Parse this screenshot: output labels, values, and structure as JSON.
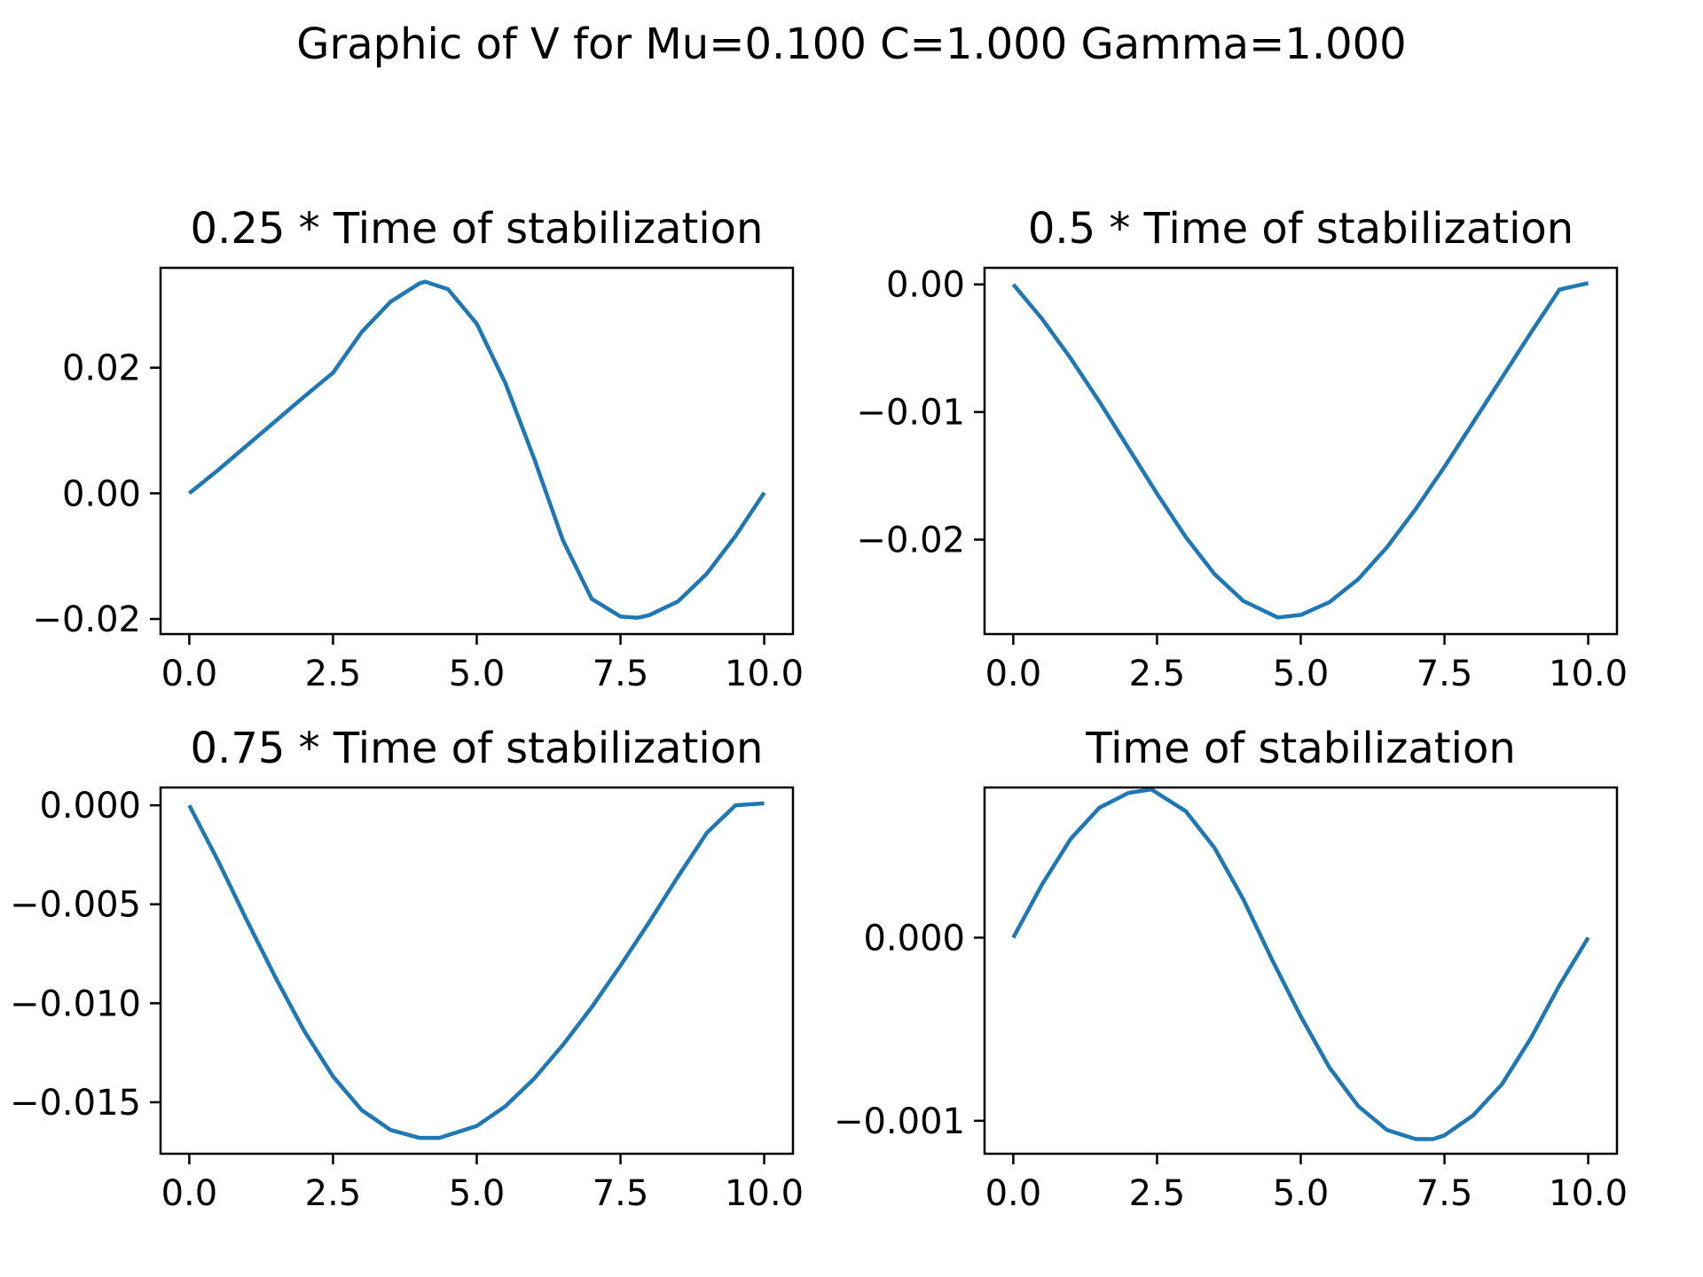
{
  "figure": {
    "suptitle": "Graphic of V for Mu=0.100 C=1.000 Gamma=1.000",
    "line_color": "#1f77b4"
  },
  "chart_data": [
    {
      "type": "line",
      "title": "0.25 *  Time of stabilization",
      "xlabel": "",
      "ylabel": "",
      "xlim": [
        -0.5,
        10.5
      ],
      "ylim": [
        -0.0224,
        0.0359
      ],
      "xticks": [
        0.0,
        2.5,
        5.0,
        7.5,
        10.0
      ],
      "xtick_labels": [
        "0.0",
        "2.5",
        "5.0",
        "7.5",
        "10.0"
      ],
      "yticks": [
        0.02,
        0.0,
        -0.02
      ],
      "ytick_labels": [
        "0.02",
        "0.00",
        "−0.02"
      ],
      "series": [
        {
          "name": "V",
          "x": [
            0,
            0.5,
            1,
            1.5,
            2,
            2.5,
            3,
            3.5,
            4,
            4.1,
            4.5,
            5,
            5.5,
            6,
            6.5,
            7,
            7.5,
            7.8,
            8,
            8.5,
            9,
            9.5,
            10
          ],
          "y": [
            0.0,
            0.0037,
            0.0076,
            0.0115,
            0.0154,
            0.0192,
            0.0257,
            0.0305,
            0.0334,
            0.0337,
            0.0325,
            0.027,
            0.0175,
            0.0055,
            -0.0075,
            -0.0168,
            -0.0196,
            -0.0198,
            -0.0194,
            -0.0172,
            -0.0128,
            -0.0068,
            0.0001
          ]
        }
      ]
    },
    {
      "type": "line",
      "title": "0.5 *  Time of stabilization",
      "xlabel": "",
      "ylabel": "",
      "xlim": [
        -0.5,
        10.5
      ],
      "ylim": [
        -0.0274,
        0.0013
      ],
      "xticks": [
        0.0,
        2.5,
        5.0,
        7.5,
        10.0
      ],
      "xtick_labels": [
        "0.0",
        "2.5",
        "5.0",
        "7.5",
        "10.0"
      ],
      "yticks": [
        0.0,
        -0.01,
        -0.02
      ],
      "ytick_labels": [
        "0.00",
        "−0.01",
        "−0.02"
      ],
      "series": [
        {
          "name": "V",
          "x": [
            0,
            0.5,
            1,
            1.5,
            2,
            2.5,
            3,
            3.5,
            4,
            4.6,
            5,
            5.5,
            6,
            6.5,
            7,
            7.5,
            8,
            8.5,
            9,
            9.5,
            10
          ],
          "y": [
            0.0,
            -0.0027,
            -0.0058,
            -0.0092,
            -0.0128,
            -0.0164,
            -0.0198,
            -0.0227,
            -0.0248,
            -0.0261,
            -0.0259,
            -0.0249,
            -0.0231,
            -0.0206,
            -0.0176,
            -0.0143,
            -0.0108,
            -0.0073,
            -0.0038,
            -0.0004,
            0.0001
          ]
        }
      ]
    },
    {
      "type": "line",
      "title": "0.75 *  Time of stabilization",
      "xlabel": "",
      "ylabel": "",
      "xlim": [
        -0.5,
        10.5
      ],
      "ylim": [
        -0.0176,
        0.0009
      ],
      "xticks": [
        0.0,
        2.5,
        5.0,
        7.5,
        10.0
      ],
      "xtick_labels": [
        "0.0",
        "2.5",
        "5.0",
        "7.5",
        "10.0"
      ],
      "yticks": [
        0.0,
        -0.005,
        -0.01,
        -0.015
      ],
      "ytick_labels": [
        "0.000",
        "−0.005",
        "−0.010",
        "−0.015"
      ],
      "series": [
        {
          "name": "V",
          "x": [
            0,
            0.5,
            1,
            1.5,
            2,
            2.5,
            3,
            3.5,
            4,
            4.35,
            5,
            5.5,
            6,
            6.5,
            7,
            7.5,
            8,
            8.5,
            9,
            9.5,
            10
          ],
          "y": [
            0.0,
            -0.0028,
            -0.0058,
            -0.0087,
            -0.0114,
            -0.0137,
            -0.0154,
            -0.0164,
            -0.0168,
            -0.0168,
            -0.0162,
            -0.0152,
            -0.0138,
            -0.0121,
            -0.0102,
            -0.0081,
            -0.0059,
            -0.0036,
            -0.0014,
            0.0,
            0.0001
          ]
        }
      ]
    },
    {
      "type": "line",
      "title": "Time of stabilization",
      "xlabel": "",
      "ylabel": "",
      "xlim": [
        -0.5,
        10.5
      ],
      "ylim": [
        -0.00118,
        0.00082
      ],
      "xticks": [
        0.0,
        2.5,
        5.0,
        7.5,
        10.0
      ],
      "xtick_labels": [
        "0.0",
        "2.5",
        "5.0",
        "7.5",
        "10.0"
      ],
      "yticks": [
        0.0,
        -0.001
      ],
      "ytick_labels": [
        "0.000",
        "−0.001"
      ],
      "series": [
        {
          "name": "V",
          "x": [
            0,
            0.5,
            1,
            1.5,
            2,
            2.4,
            3,
            3.5,
            4,
            4.5,
            5,
            5.5,
            6,
            6.5,
            7,
            7.3,
            7.5,
            8,
            8.5,
            9,
            9.5,
            10
          ],
          "y": [
            0.0,
            0.00029,
            0.00054,
            0.00071,
            0.00079,
            0.00081,
            0.00069,
            0.00049,
            0.00021,
            -0.00012,
            -0.00043,
            -0.00071,
            -0.00092,
            -0.00105,
            -0.0011,
            -0.0011,
            -0.00108,
            -0.00097,
            -0.0008,
            -0.00055,
            -0.00026,
            0.0
          ]
        }
      ]
    }
  ]
}
